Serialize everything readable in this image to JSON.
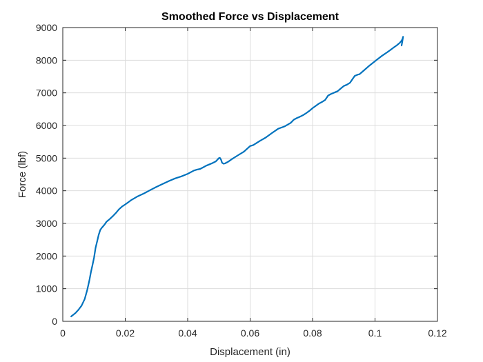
{
  "chart_data": {
    "type": "line",
    "title": "Smoothed Force vs Displacement",
    "xlabel": "Displacement (in)",
    "ylabel": "Force (lbf)",
    "xlim": [
      0,
      0.12
    ],
    "ylim": [
      0,
      9000
    ],
    "xticks": [
      0,
      0.02,
      0.04,
      0.06,
      0.08,
      0.1,
      0.12
    ],
    "xtick_labels": [
      "0",
      "0.02",
      "0.04",
      "0.06",
      "0.08",
      "0.1",
      "0.12"
    ],
    "yticks": [
      0,
      1000,
      2000,
      3000,
      4000,
      5000,
      6000,
      7000,
      8000,
      9000
    ],
    "ytick_labels": [
      "0",
      "1000",
      "2000",
      "3000",
      "4000",
      "5000",
      "6000",
      "7000",
      "8000",
      "9000"
    ],
    "grid": true,
    "colors": {
      "series": "#0072BD"
    },
    "series": [
      {
        "x": [
          0.0027,
          0.004,
          0.005,
          0.006,
          0.007,
          0.0078,
          0.0085,
          0.009,
          0.0095,
          0.01,
          0.0105,
          0.011,
          0.0115,
          0.012,
          0.0125,
          0.013,
          0.0135,
          0.014,
          0.015,
          0.016,
          0.017,
          0.018,
          0.019,
          0.02,
          0.021,
          0.022,
          0.024,
          0.026,
          0.028,
          0.03,
          0.032,
          0.034,
          0.036,
          0.038,
          0.04,
          0.042,
          0.043,
          0.044,
          0.045,
          0.046,
          0.047,
          0.048,
          0.049,
          0.05,
          0.0503,
          0.0507,
          0.051,
          0.0515,
          0.052,
          0.053,
          0.054,
          0.056,
          0.058,
          0.06,
          0.061,
          0.063,
          0.065,
          0.067,
          0.069,
          0.071,
          0.073,
          0.074,
          0.075,
          0.076,
          0.077,
          0.078,
          0.079,
          0.08,
          0.081,
          0.082,
          0.083,
          0.084,
          0.085,
          0.086,
          0.087,
          0.088,
          0.089,
          0.09,
          0.091,
          0.092,
          0.093,
          0.0935,
          0.094,
          0.0945,
          0.095,
          0.096,
          0.098,
          0.1,
          0.102,
          0.104,
          0.105,
          0.106,
          0.107,
          0.108,
          0.1085,
          0.1088,
          0.109,
          0.1088,
          0.1085
        ],
        "y": [
          150,
          250,
          350,
          480,
          680,
          950,
          1250,
          1500,
          1720,
          1950,
          2250,
          2450,
          2650,
          2800,
          2870,
          2920,
          2980,
          3050,
          3130,
          3220,
          3320,
          3430,
          3520,
          3580,
          3650,
          3720,
          3830,
          3920,
          4020,
          4120,
          4210,
          4300,
          4380,
          4440,
          4520,
          4620,
          4650,
          4670,
          4720,
          4770,
          4810,
          4850,
          4900,
          5000,
          5010,
          4950,
          4860,
          4830,
          4840,
          4890,
          4960,
          5080,
          5200,
          5370,
          5400,
          5520,
          5630,
          5770,
          5900,
          5970,
          6080,
          6180,
          6230,
          6270,
          6320,
          6380,
          6450,
          6530,
          6600,
          6670,
          6720,
          6780,
          6920,
          6970,
          7010,
          7050,
          7130,
          7210,
          7250,
          7310,
          7450,
          7520,
          7540,
          7560,
          7570,
          7650,
          7820,
          7970,
          8120,
          8250,
          8320,
          8390,
          8460,
          8540,
          8600,
          8650,
          8720,
          8600,
          8450
        ]
      }
    ]
  }
}
